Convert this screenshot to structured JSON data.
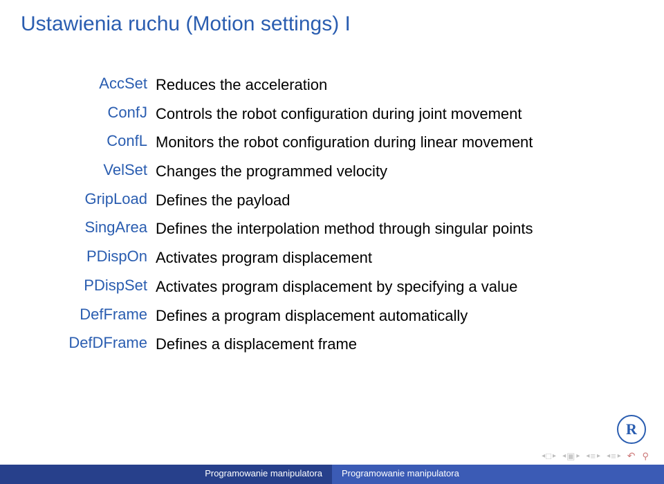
{
  "title": "Ustawienia ruchu (Motion settings) I",
  "items": [
    {
      "term": "AccSet",
      "desc": "Reduces the acceleration"
    },
    {
      "term": "ConfJ",
      "desc": "Controls the robot configuration during joint movement"
    },
    {
      "term": "ConfL",
      "desc": "Monitors the robot configuration during linear movement"
    },
    {
      "term": "VelSet",
      "desc": "Changes the programmed velocity"
    },
    {
      "term": "GripLoad",
      "desc": "Defines the payload"
    },
    {
      "term": "SingArea",
      "desc": "Defines the interpolation method through singular points"
    },
    {
      "term": "PDispOn",
      "desc": "Activates program displacement"
    },
    {
      "term": "PDispSet",
      "desc": "Activates program displacement by specifying a value"
    },
    {
      "term": "DefFrame",
      "desc": "Defines a program displacement automatically"
    },
    {
      "term": "DefDFrame",
      "desc": "Defines a displacement frame"
    }
  ],
  "footer": {
    "left": "Programowanie manipulatora",
    "right": "Programowanie manipulatora"
  },
  "logo_text": "R",
  "colors": {
    "title": "#2a5db0",
    "term": "#2a5db0",
    "desc": "#000000",
    "footer_left_bg": "#27408b",
    "footer_right_bg": "#3b5bb5",
    "footer_text": "#ffffff",
    "background": "#ffffff"
  },
  "fonts": {
    "title_size": 30,
    "body_size": 22,
    "footer_size": 13
  }
}
